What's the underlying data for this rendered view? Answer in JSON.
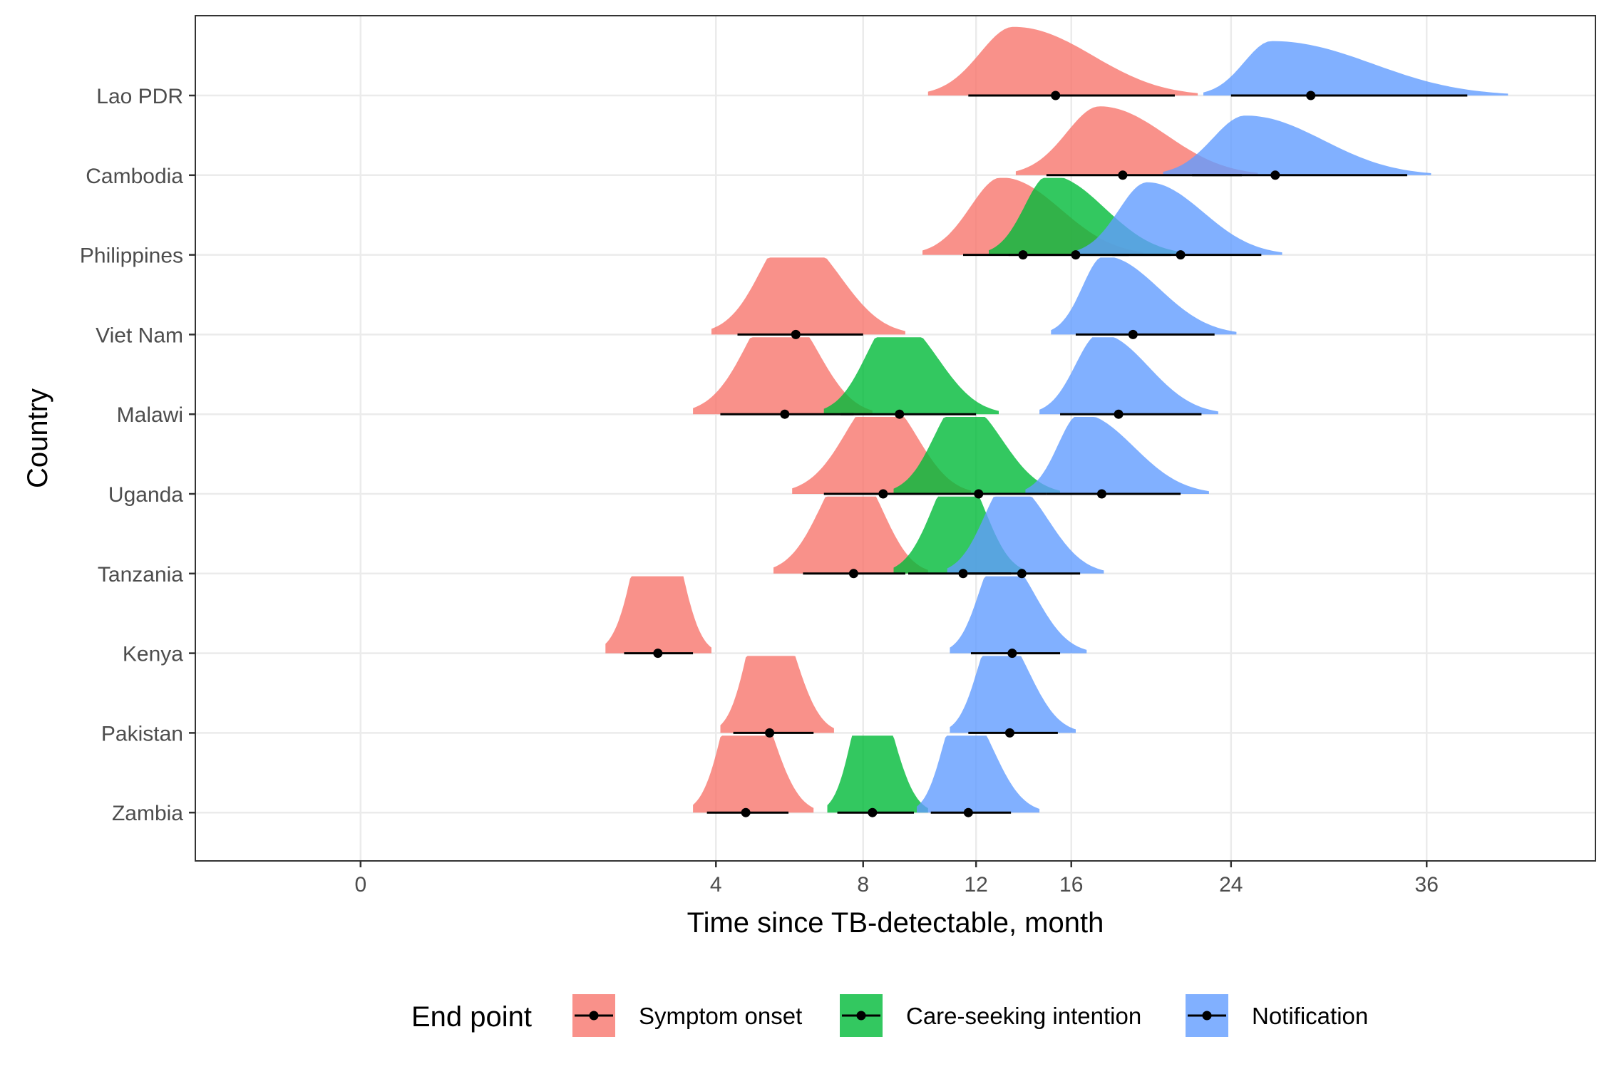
{
  "chart_data": {
    "type": "ridgeline-interval",
    "xlabel": "Time since TB-detectable, month",
    "ylabel": "Country",
    "x_ticks": [
      0,
      4,
      8,
      12,
      16,
      24,
      36
    ],
    "x_tick_labels": [
      "0",
      "4",
      "8",
      "12",
      "16",
      "24",
      "36"
    ],
    "xlim": [
      -0.2,
      44.7
    ],
    "x_scale": "sqrt",
    "grid": true,
    "legend": {
      "title": "End point",
      "placement": "bottom",
      "entries": [
        {
          "key": "symptom",
          "label": "Symptom onset",
          "color": "#F8766D"
        },
        {
          "key": "care",
          "label": "Care-seeking intention",
          "color": "#00BA38"
        },
        {
          "key": "notif",
          "label": "Notification",
          "color": "#619CFF"
        }
      ]
    },
    "countries": [
      "Lao PDR",
      "Cambodia",
      "Philippines",
      "Viet Nam",
      "Malawi",
      "Uganda",
      "Tanzania",
      "Kenya",
      "Pakistan",
      "Zambia"
    ],
    "series": [
      {
        "name": "Lao PDR",
        "endpoints": [
          {
            "type": "symptom",
            "median": 15.3,
            "ci": [
              11.7,
              21.0
            ],
            "range": [
              10.2,
              22.2
            ],
            "mode": 13.5
          },
          {
            "type": "notif",
            "median": 28.6,
            "ci": [
              24.0,
              38.8
            ],
            "range": [
              22.5,
              41.7
            ],
            "mode": 26.3
          }
        ]
      },
      {
        "name": "Cambodia",
        "endpoints": [
          {
            "type": "symptom",
            "median": 18.4,
            "ci": [
              14.9,
              24.6
            ],
            "range": [
              13.6,
              25.5
            ],
            "mode": 17.3
          },
          {
            "type": "notif",
            "median": 26.5,
            "ci": [
              21.9,
              34.7
            ],
            "range": [
              20.4,
              36.3
            ],
            "mode": 24.8
          }
        ]
      },
      {
        "name": "Philippines",
        "endpoints": [
          {
            "type": "symptom",
            "median": 13.9,
            "ci": [
              11.5,
              18.7
            ],
            "range": [
              10.0,
              19.4
            ],
            "mode": 13.0
          },
          {
            "type": "care",
            "median": 16.2,
            "ci": [
              13.3,
              20.8
            ],
            "range": [
              12.5,
              21.4
            ],
            "mode": 15.0
          },
          {
            "type": "notif",
            "median": 21.3,
            "ci": [
              17.9,
              25.7
            ],
            "range": [
              16.2,
              26.9
            ],
            "mode": 19.6
          }
        ]
      },
      {
        "name": "Viet Nam",
        "endpoints": [
          {
            "type": "symptom",
            "median": 6.0,
            "ci": [
              4.5,
              8.0
            ],
            "range": [
              3.9,
              9.4
            ],
            "mode": 5.85
          },
          {
            "type": "notif",
            "median": 18.9,
            "ci": [
              16.2,
              23.1
            ],
            "range": [
              15.1,
              24.3
            ],
            "mode": 17.5
          }
        ]
      },
      {
        "name": "Malawi",
        "endpoints": [
          {
            "type": "symptom",
            "median": 5.7,
            "ci": [
              4.1,
              7.7
            ],
            "range": [
              3.5,
              8.3
            ],
            "mode": 5.5
          },
          {
            "type": "care",
            "median": 9.2,
            "ci": [
              7.3,
              12.0
            ],
            "range": [
              6.8,
              12.9
            ],
            "mode": 9.0
          },
          {
            "type": "notif",
            "median": 18.2,
            "ci": [
              15.5,
              22.4
            ],
            "range": [
              14.6,
              23.3
            ],
            "mode": 17.3
          }
        ]
      },
      {
        "name": "Uganda",
        "endpoints": [
          {
            "type": "symptom",
            "median": 8.65,
            "ci": [
              6.8,
              11.1
            ],
            "range": [
              5.9,
              11.8
            ],
            "mode": 8.5
          },
          {
            "type": "care",
            "median": 12.1,
            "ci": [
              9.6,
              14.9
            ],
            "range": [
              9.0,
              15.5
            ],
            "mode": 11.4
          },
          {
            "type": "notif",
            "median": 17.4,
            "ci": [
              14.9,
              21.3
            ],
            "range": [
              14.0,
              22.8
            ],
            "mode": 16.4
          }
        ]
      },
      {
        "name": "Tanzania",
        "endpoints": [
          {
            "type": "symptom",
            "median": 7.7,
            "ci": [
              6.2,
              9.4
            ],
            "range": [
              5.4,
              10.2
            ],
            "mode": 7.6
          },
          {
            "type": "care",
            "median": 11.5,
            "ci": [
              9.5,
              13.4
            ],
            "range": [
              9.0,
              14.0
            ],
            "mode": 11.3
          },
          {
            "type": "notif",
            "median": 13.85,
            "ci": [
              11.7,
              16.4
            ],
            "range": [
              10.9,
              17.5
            ],
            "mode": 13.3
          }
        ]
      },
      {
        "name": "Kenya",
        "endpoints": [
          {
            "type": "symptom",
            "median": 2.8,
            "ci": [
              2.2,
              3.5
            ],
            "range": [
              1.9,
              3.9
            ],
            "mode": 2.75
          },
          {
            "type": "notif",
            "median": 13.45,
            "ci": [
              11.8,
              15.5
            ],
            "range": [
              11.0,
              16.7
            ],
            "mode": 12.9
          }
        ]
      },
      {
        "name": "Pakistan",
        "endpoints": [
          {
            "type": "symptom",
            "median": 5.3,
            "ci": [
              4.4,
              6.5
            ],
            "range": [
              4.1,
              7.1
            ],
            "mode": 5.2
          },
          {
            "type": "notif",
            "median": 13.35,
            "ci": [
              11.7,
              15.4
            ],
            "range": [
              11.0,
              16.2
            ],
            "mode": 12.8
          }
        ]
      },
      {
        "name": "Zambia",
        "endpoints": [
          {
            "type": "symptom",
            "median": 4.7,
            "ci": [
              3.8,
              5.8
            ],
            "range": [
              3.5,
              6.5
            ],
            "mode": 4.6
          },
          {
            "type": "care",
            "median": 8.3,
            "ci": [
              7.2,
              9.7
            ],
            "range": [
              6.9,
              10.2
            ],
            "mode": 8.2
          },
          {
            "type": "notif",
            "median": 11.7,
            "ci": [
              10.3,
              13.4
            ],
            "range": [
              9.8,
              14.6
            ],
            "mode": 11.4
          }
        ]
      }
    ]
  }
}
